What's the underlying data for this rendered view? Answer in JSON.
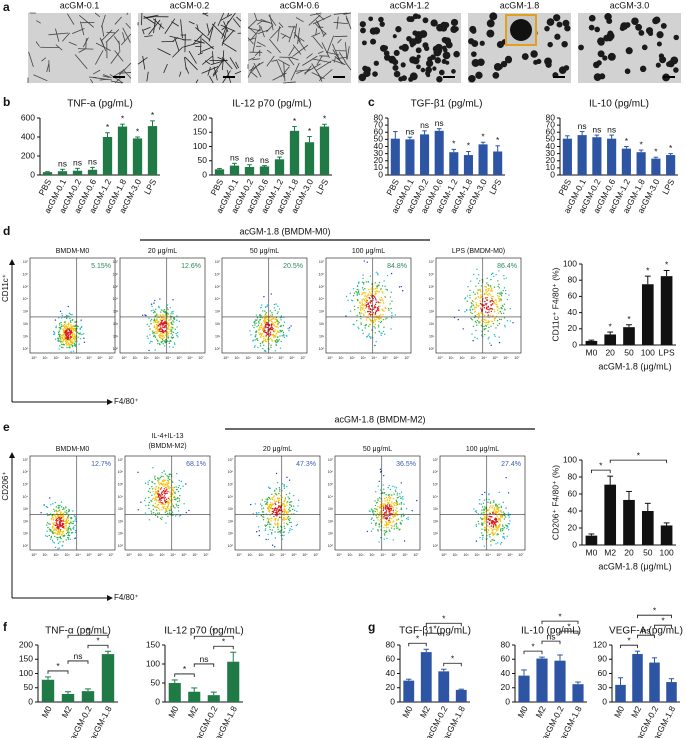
{
  "panel_letters": [
    "a",
    "b",
    "c",
    "d",
    "e",
    "f",
    "g"
  ],
  "images": {
    "labels": [
      "acGM-0.1",
      "acGM-0.2",
      "acGM-0.6",
      "acGM-1.2",
      "acGM-1.8",
      "acGM-3.0"
    ]
  },
  "flow": {
    "ticks": [
      "10⁰",
      "10¹",
      "10²",
      "10³",
      "10⁴",
      "10⁵",
      "10⁶",
      "10⁷"
    ],
    "panels": [
      {
        "header": "acGM-1.8 (BMDM-M0)",
        "y_label": "CD11c⁺",
        "x_label": "F4/80⁺",
        "plots": [
          {
            "title": "BMDM-M0",
            "percent": "5.15%"
          },
          {
            "title": "20 μg/mL",
            "percent": "12.6%"
          },
          {
            "title": "50 μg/mL",
            "percent": "20.5%"
          },
          {
            "title": "100 μg/mL",
            "percent": "84.8%"
          },
          {
            "title": "LPS (BMDM-M0)",
            "percent": "86.4%"
          }
        ]
      },
      {
        "header": "acGM-1.8 (BMDM-M2)",
        "y_label": "CD206⁺",
        "x_label": "F4/80⁺",
        "plots": [
          {
            "title": "BMDM-M0",
            "percent": "12.7%"
          },
          {
            "title": "IL-4+IL-13",
            "subtitle": "(BMDM-M2)",
            "percent": "68.1%"
          },
          {
            "title": "20 μg/mL",
            "percent": "47.3%"
          },
          {
            "title": "50 μg/mL",
            "percent": "36.5%"
          },
          {
            "title": "100 μg/mL",
            "percent": "27.4%"
          }
        ]
      }
    ]
  },
  "chart_data": [
    {
      "type": "bar",
      "title": "TNF-a (pg/mL)",
      "color": "#1f7a45",
      "categories": [
        "PBS",
        "acGM-0.1",
        "acGM-0.2",
        "acGM-0.6",
        "acGM-1.2",
        "acGM-1.8",
        "acGM-3.0",
        "LPS"
      ],
      "values": [
        30,
        40,
        45,
        55,
        400,
        510,
        385,
        515
      ],
      "errors": [
        5,
        20,
        25,
        25,
        45,
        25,
        15,
        55
      ],
      "annotations": [
        null,
        "ns",
        "ns",
        "ns",
        "*",
        "*",
        "*",
        "*"
      ],
      "ylim": [
        0,
        600
      ],
      "yticks": [
        0,
        200,
        400,
        600
      ]
    },
    {
      "type": "bar",
      "title": "IL-12 p70 (pg/mL)",
      "color": "#1f7a45",
      "categories": [
        "PBS",
        "acGM-0.1",
        "acGM-0.2",
        "acGM-0.6",
        "acGM-1.2",
        "acGM-1.8",
        "acGM-3.0",
        "LPS"
      ],
      "values": [
        20,
        33,
        28,
        30,
        55,
        155,
        115,
        170
      ],
      "errors": [
        3,
        8,
        8,
        3,
        8,
        15,
        20,
        8
      ],
      "annotations": [
        null,
        "ns",
        "ns",
        "ns",
        "ns",
        "*",
        "*",
        "*"
      ],
      "ylim": [
        0,
        200
      ],
      "yticks": [
        0,
        50,
        100,
        150,
        200
      ]
    },
    {
      "type": "bar",
      "title": "TGF-β1 (pg/mL)",
      "color": "#2d55a4",
      "categories": [
        "PBS",
        "acGM-0.1",
        "acGM-0.2",
        "acGM-0.6",
        "acGM-1.2",
        "acGM-1.8",
        "acGM-3.0",
        "LPS"
      ],
      "values": [
        51,
        50,
        57,
        62,
        32,
        28,
        43,
        33
      ],
      "errors": [
        10,
        3,
        5,
        3,
        4,
        5,
        3,
        8
      ],
      "annotations": [
        null,
        "ns",
        "ns",
        "ns",
        "*",
        "*",
        "*",
        "*"
      ],
      "ylim": [
        0,
        80
      ],
      "yticks": [
        0,
        10,
        20,
        30,
        40,
        50,
        60,
        70,
        80
      ]
    },
    {
      "type": "bar",
      "title": "IL-10 (pg/mL)",
      "color": "#2d55a4",
      "categories": [
        "PBS",
        "acGM-0.1",
        "acGM-0.2",
        "acGM-0.6",
        "acGM-1.2",
        "acGM-1.8",
        "acGM-3.0",
        "LPS"
      ],
      "values": [
        51,
        56,
        53,
        51,
        37,
        32,
        23,
        28
      ],
      "errors": [
        4,
        5,
        3,
        5,
        3,
        3,
        2,
        2
      ],
      "annotations": [
        null,
        "ns",
        "ns",
        "ns",
        "*",
        "*",
        "*",
        "*"
      ],
      "ylim": [
        0,
        80
      ],
      "yticks": [
        0,
        10,
        20,
        30,
        40,
        50,
        60,
        70,
        80
      ]
    },
    {
      "type": "bar",
      "y_label": "CD11c⁺ F4/80⁺ (%)",
      "x_label": "acGM-1.8 (μg/mL)",
      "color": "#111111",
      "categories": [
        "M0",
        "20",
        "50",
        "100",
        "LPS"
      ],
      "values": [
        5,
        13,
        22,
        75,
        85
      ],
      "errors": [
        1,
        3,
        3,
        10,
        7
      ],
      "annotations": [
        null,
        "*",
        "*",
        "*",
        "*"
      ],
      "ylim": [
        0,
        100
      ],
      "yticks": [
        0,
        20,
        40,
        60,
        80,
        100
      ]
    },
    {
      "type": "bar",
      "y_label": "CD206⁺ F4/80⁺ (%)",
      "x_label": "acGM-1.8 (μg/mL)",
      "color": "#111111",
      "categories": [
        "M0",
        "M2",
        "20",
        "50",
        "100"
      ],
      "values": [
        11,
        71,
        53,
        40,
        23
      ],
      "errors": [
        2,
        10,
        10,
        9,
        3
      ],
      "brackets": [
        {
          "from": 0,
          "to": 1,
          "label": "*"
        },
        {
          "from": 1,
          "to": 4,
          "label": "*"
        }
      ],
      "ylim": [
        0,
        100
      ],
      "yticks": [
        0,
        20,
        40,
        60,
        80,
        100
      ]
    },
    {
      "type": "bar",
      "title": "TNF-α (pg/mL)",
      "color": "#1f7a45",
      "categories": [
        "M0",
        "M2",
        "acGM-0.2",
        "acGM-1.8"
      ],
      "values": [
        78,
        28,
        38,
        168
      ],
      "errors": [
        10,
        8,
        8,
        10
      ],
      "brackets": [
        {
          "from": 0,
          "to": 1,
          "label": "*"
        },
        {
          "from": 1,
          "to": 2,
          "label": "ns"
        },
        {
          "from": 2,
          "to": 3,
          "label": "*"
        },
        {
          "from": 1,
          "to": 3,
          "label": "*"
        }
      ],
      "ylim": [
        0,
        200
      ],
      "yticks": [
        0,
        50,
        100,
        150,
        200
      ]
    },
    {
      "type": "bar",
      "title": "IL-12 p70 (pg/mL)",
      "color": "#1f7a45",
      "categories": [
        "M0",
        "M2",
        "acGM-0.2",
        "acGM-1.8"
      ],
      "values": [
        50,
        27,
        18,
        106
      ],
      "errors": [
        8,
        10,
        8,
        25
      ],
      "brackets": [
        {
          "from": 0,
          "to": 1,
          "label": "*"
        },
        {
          "from": 1,
          "to": 2,
          "label": "ns"
        },
        {
          "from": 2,
          "to": 3,
          "label": "*"
        },
        {
          "from": 1,
          "to": 3,
          "label": "*"
        }
      ],
      "ylim": [
        0,
        150
      ],
      "yticks": [
        0,
        50,
        100,
        150
      ]
    },
    {
      "type": "bar",
      "title": "TGF-β1 (pg/mL)",
      "color": "#2d55a4",
      "categories": [
        "M0",
        "M2",
        "acGM-0.2",
        "acGM-1.8"
      ],
      "values": [
        30,
        70,
        43,
        17
      ],
      "errors": [
        2,
        4,
        3,
        1
      ],
      "brackets": [
        {
          "from": 0,
          "to": 1,
          "label": "*"
        },
        {
          "from": 2,
          "to": 3,
          "label": "*"
        },
        {
          "from": 1,
          "to": 2,
          "label": "*"
        },
        {
          "from": 1,
          "to": 3,
          "label": "*"
        }
      ],
      "ylim": [
        0,
        80
      ],
      "yticks": [
        0,
        20,
        40,
        60,
        80
      ]
    },
    {
      "type": "bar",
      "title": "IL-10 (pg/mL)",
      "color": "#2d55a4",
      "categories": [
        "M0",
        "M2",
        "acGM-0.2",
        "acGM-1.8"
      ],
      "values": [
        37,
        61,
        58,
        25
      ],
      "errors": [
        8,
        2,
        8,
        3
      ],
      "brackets": [
        {
          "from": 0,
          "to": 1,
          "label": "*"
        },
        {
          "from": 1,
          "to": 2,
          "label": "ns"
        },
        {
          "from": 2,
          "to": 3,
          "label": "*"
        },
        {
          "from": 1,
          "to": 3,
          "label": "*"
        }
      ],
      "ylim": [
        0,
        80
      ],
      "yticks": [
        0,
        20,
        40,
        60,
        80
      ]
    },
    {
      "type": "bar",
      "title": "VEGF-A (pg/mL)",
      "color": "#2d55a4",
      "categories": [
        "M0",
        "M2",
        "acGM-0.2",
        "acGM-1.8"
      ],
      "values": [
        36,
        101,
        83,
        42
      ],
      "errors": [
        15,
        6,
        10,
        7
      ],
      "brackets": [
        {
          "from": 0,
          "to": 1,
          "label": "*"
        },
        {
          "from": 1,
          "to": 2,
          "label": "ns"
        },
        {
          "from": 2,
          "to": 3,
          "label": "*"
        },
        {
          "from": 1,
          "to": 3,
          "label": "*"
        }
      ],
      "ylim": [
        0,
        120
      ],
      "yticks": [
        0,
        30,
        60,
        90,
        120
      ]
    }
  ]
}
